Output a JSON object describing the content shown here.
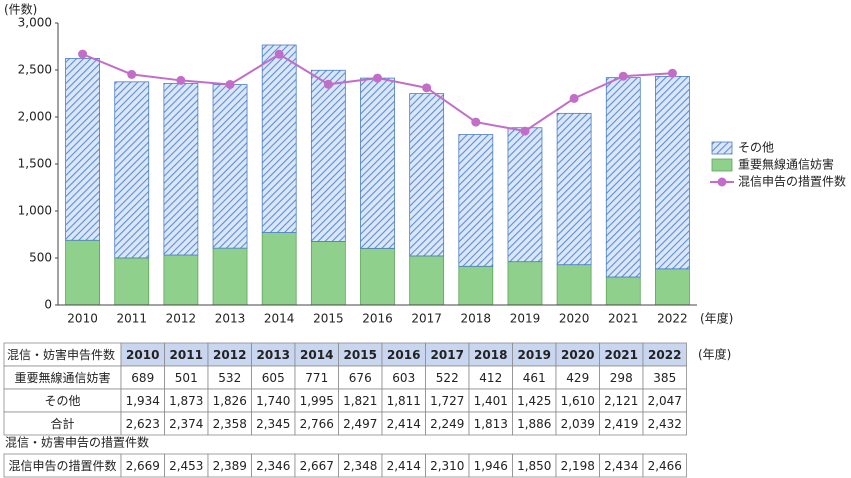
{
  "chart_data": {
    "type": "bar",
    "stacked": true,
    "y_label": "(件数)",
    "x_label": "(年度)",
    "categories": [
      "2010",
      "2011",
      "2012",
      "2013",
      "2014",
      "2015",
      "2016",
      "2017",
      "2018",
      "2019",
      "2020",
      "2021",
      "2022"
    ],
    "series": [
      {
        "name": "重要無線通信妨害",
        "type": "bar",
        "color": "#8fd08c",
        "values": [
          689,
          501,
          532,
          605,
          771,
          676,
          603,
          522,
          412,
          461,
          429,
          298,
          385
        ]
      },
      {
        "name": "その他",
        "type": "bar",
        "hatched": true,
        "color": "#5b8fd6",
        "values": [
          1934,
          1873,
          1826,
          1740,
          1995,
          1821,
          1811,
          1727,
          1401,
          1425,
          1610,
          2121,
          2047
        ]
      },
      {
        "name": "混信申告の措置件数",
        "type": "line",
        "color": "#c26ec9",
        "values": [
          2669,
          2453,
          2389,
          2346,
          2667,
          2348,
          2414,
          2310,
          1946,
          1850,
          2198,
          2434,
          2466
        ]
      }
    ],
    "ylim": [
      0,
      3000
    ],
    "yticks": [
      0,
      500,
      {
        "value": 1000,
        "label": "1,000"
      },
      {
        "value": 1500,
        "label": "1,500"
      },
      {
        "value": 2000,
        "label": "2,000"
      },
      {
        "value": 2500,
        "label": "2,500"
      },
      {
        "value": 3000,
        "label": "3,000"
      }
    ],
    "grid": false,
    "legend": "right"
  },
  "table": {
    "header": [
      "混信・妨害申告件数",
      "2010",
      "2011",
      "2012",
      "2013",
      "2014",
      "2015",
      "2016",
      "2017",
      "2018",
      "2019",
      "2020",
      "2021",
      "2022"
    ],
    "unit": "(年度)",
    "rows": [
      [
        "重要無線通信妨害",
        "689",
        "501",
        "532",
        "605",
        "771",
        "676",
        "603",
        "522",
        "412",
        "461",
        "429",
        "298",
        "385"
      ],
      [
        "その他",
        "1,934",
        "1,873",
        "1,826",
        "1,740",
        "1,995",
        "1,821",
        "1,811",
        "1,727",
        "1,401",
        "1,425",
        "1,610",
        "2,121",
        "2,047"
      ],
      [
        "合計",
        "2,623",
        "2,374",
        "2,358",
        "2,345",
        "2,766",
        "2,497",
        "2,414",
        "2,249",
        "1,813",
        "1,886",
        "2,039",
        "2,419",
        "2,432"
      ]
    ],
    "section2_title": "混信・妨害申告の措置件数",
    "rows2": [
      [
        "混信申告の措置件数",
        "2,669",
        "2,453",
        "2,389",
        "2,346",
        "2,667",
        "2,348",
        "2,414",
        "2,310",
        "1,946",
        "1,850",
        "2,198",
        "2,434",
        "2,466"
      ]
    ]
  }
}
